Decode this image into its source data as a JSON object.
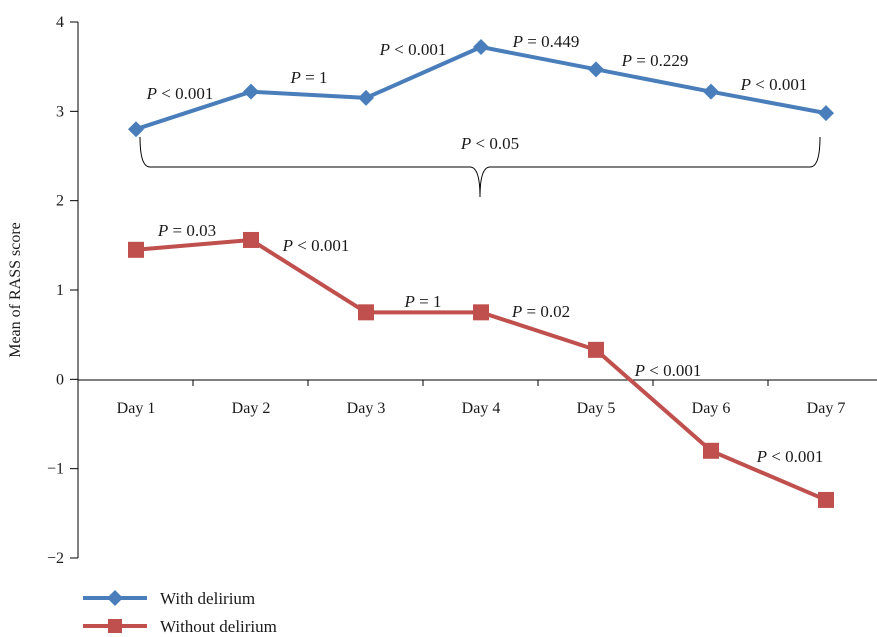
{
  "chart_data": {
    "type": "line",
    "title": "",
    "xlabel": "",
    "ylabel": "Mean of RASS score",
    "ylim": [
      -2,
      4
    ],
    "yticks": [
      "−2",
      "−1",
      "0",
      "1",
      "2",
      "3",
      "4"
    ],
    "grid": false,
    "legend_position": "bottom-left",
    "categories": [
      "Day 1",
      "Day 2",
      "Day 3",
      "Day 4",
      "Day 5",
      "Day 6",
      "Day 7"
    ],
    "series": [
      {
        "name": "With delirium",
        "color": "#4a7ebb",
        "marker": "diamond",
        "values": [
          2.8,
          3.22,
          3.15,
          3.72,
          3.47,
          3.22,
          2.98
        ]
      },
      {
        "name": "Without delirium",
        "color": "#c0504d",
        "marker": "square",
        "values": [
          1.45,
          1.56,
          0.75,
          0.75,
          0.33,
          -0.8,
          -1.35
        ]
      }
    ],
    "annotations": {
      "with_delirium_pairs": [
        "P < 0.001",
        "P = 1",
        "P < 0.001",
        "P = 0.449",
        "P = 0.229",
        "P < 0.001"
      ],
      "without_delirium_pairs": [
        "P = 0.03",
        "P < 0.001",
        "P = 1",
        "P = 0.02",
        "P < 0.001",
        "P < 0.001"
      ],
      "bracket_overall": "P < 0.05"
    }
  }
}
